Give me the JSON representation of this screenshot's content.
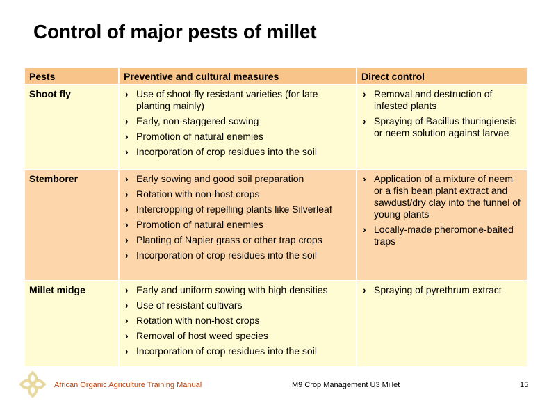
{
  "title": "Control of major pests of millet",
  "marker": "›",
  "headers": [
    "Pests",
    "Preventive and cultural measures",
    "Direct control"
  ],
  "rows": [
    {
      "pest": "Shoot fly",
      "preventive": [
        "Use of shoot-fly resistant varieties (for late planting mainly)",
        "Early, non-staggered sowing",
        "Promotion of natural enemies",
        "Incorporation of crop residues into the soil"
      ],
      "direct": [
        "Removal and destruction of infested plants",
        "Spraying of Bacillus thuringiensis or neem solution against larvae"
      ]
    },
    {
      "pest": "Stemborer",
      "preventive": [
        "Early sowing and good soil preparation",
        "Rotation with non-host crops",
        "Intercropping of repelling plants like Silverleaf",
        "Promotion of natural enemies",
        "Planting of Napier grass or other trap crops",
        "Incorporation of crop residues into the soil"
      ],
      "direct": [
        "Application of a mixture of neem or a fish bean plant extract and sawdust/dry clay into the funnel of young plants",
        "Locally-made pheromone-baited traps"
      ]
    },
    {
      "pest": "Millet midge",
      "preventive": [
        "Early and uniform sowing with high densities",
        "Use of resistant cultivars",
        "Rotation with non-host crops",
        "Removal of host weed species",
        "Incorporation of crop residues into the soil"
      ],
      "direct": [
        "Spraying of pyrethrum extract"
      ]
    }
  ],
  "footer": {
    "left": "African Organic Agriculture Training Manual",
    "middle": "M9 Crop Management   U3 Millet",
    "page": "15"
  },
  "colors": {
    "header_bg": "#f8c48a",
    "row_light": "#fffbd2",
    "row_dark": "#fdd7ab",
    "footer_left": "#b5440f",
    "logo": "#e8d9a0"
  },
  "logo_icon": "knot-logo-icon"
}
